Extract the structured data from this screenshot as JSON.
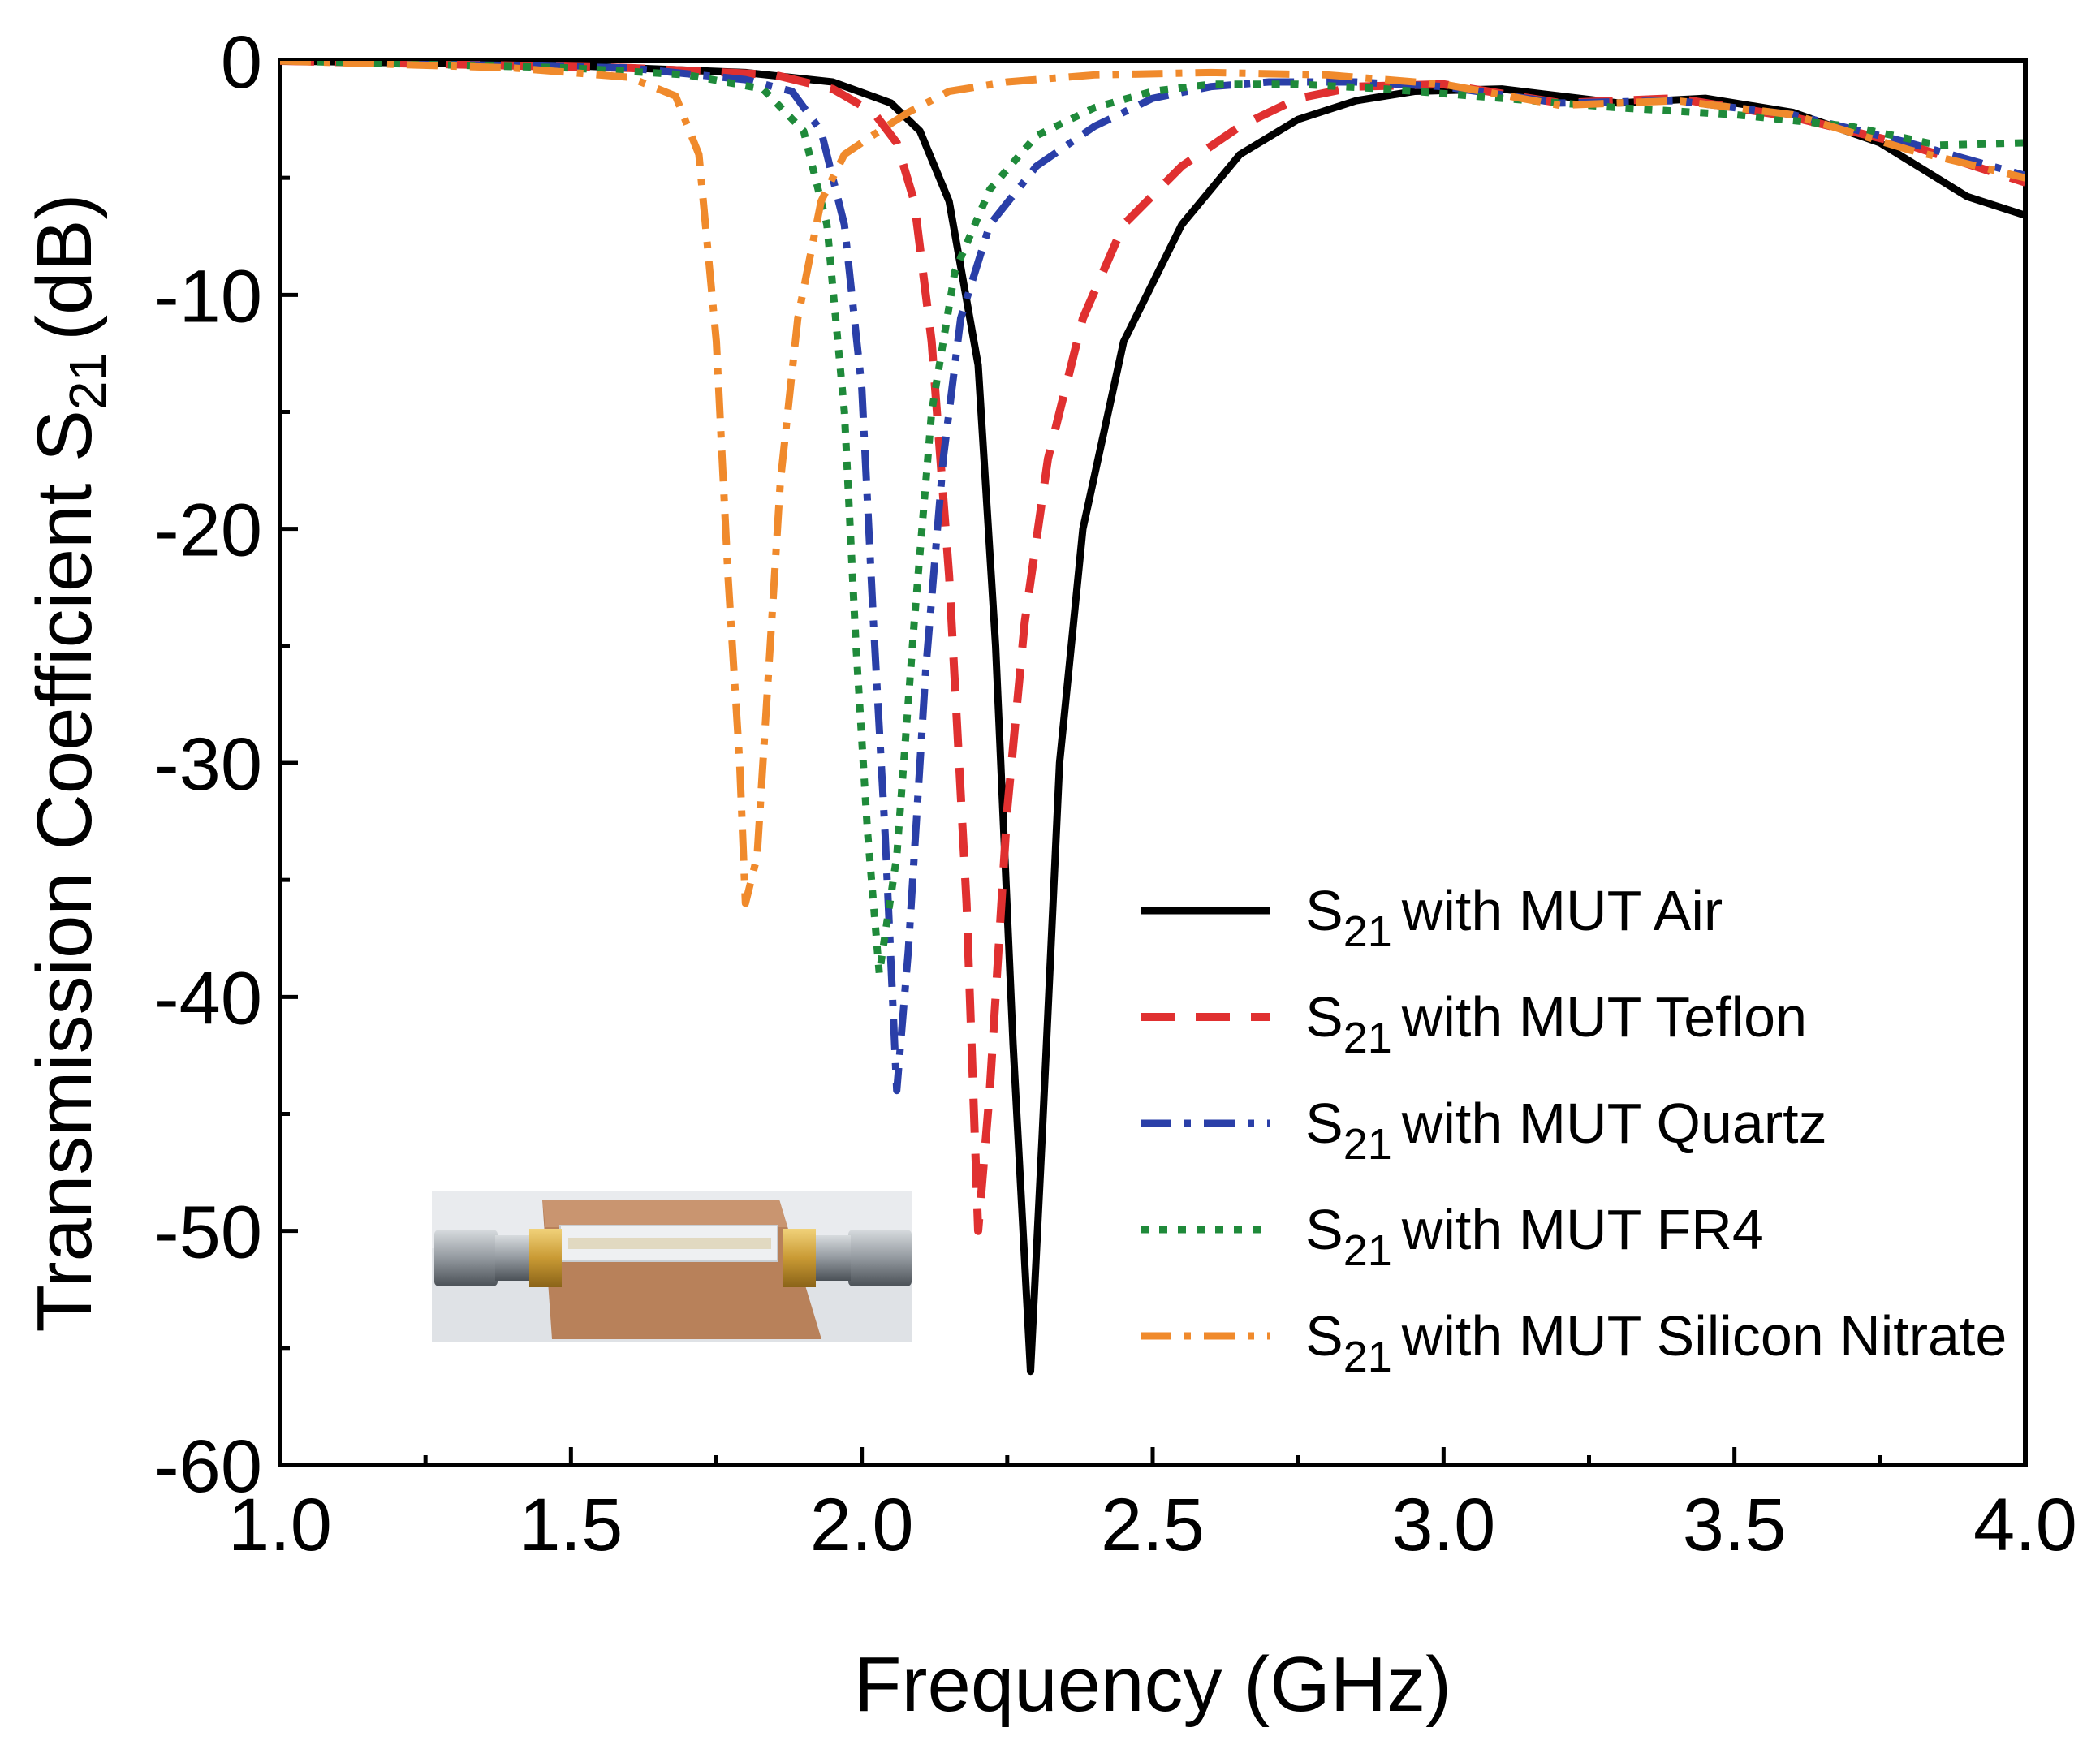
{
  "chart_data": {
    "type": "line",
    "title": "",
    "xlabel": "Frequency (GHz)",
    "ylabel_main": "Transmission Coefficient S",
    "ylabel_sub": "21",
    "ylabel_unit": "(dB)",
    "xlim": [
      1.0,
      4.0
    ],
    "ylim": [
      -60,
      0
    ],
    "xticks": [
      1.0,
      1.5,
      2.0,
      2.5,
      3.0,
      3.5,
      4.0
    ],
    "xtick_labels": [
      "1.0",
      "1.5",
      "2.0",
      "2.5",
      "3.0",
      "3.5",
      "4.0"
    ],
    "yticks": [
      0,
      -10,
      -20,
      -30,
      -40,
      -50,
      -60
    ],
    "ytick_labels": [
      "0",
      "-10",
      "-20",
      "-30",
      "-40",
      "-50",
      "-60"
    ],
    "legend_position": "bottom-right",
    "grid": false,
    "inset": "photo of microstrip sensor with SMA connectors (bottom-left)",
    "series": [
      {
        "name": "with MUT Air",
        "legend_prefix": "S",
        "legend_sub": "21",
        "color": "#000000",
        "style": "solid",
        "points": [
          [
            1.0,
            0
          ],
          [
            1.5,
            -0.2
          ],
          [
            1.8,
            -0.5
          ],
          [
            1.95,
            -0.9
          ],
          [
            2.05,
            -1.8
          ],
          [
            2.1,
            -3
          ],
          [
            2.15,
            -6
          ],
          [
            2.2,
            -13
          ],
          [
            2.23,
            -25
          ],
          [
            2.26,
            -42
          ],
          [
            2.29,
            -56
          ],
          [
            2.31,
            -46
          ],
          [
            2.34,
            -30
          ],
          [
            2.38,
            -20
          ],
          [
            2.45,
            -12
          ],
          [
            2.55,
            -7
          ],
          [
            2.65,
            -4
          ],
          [
            2.75,
            -2.5
          ],
          [
            2.85,
            -1.7
          ],
          [
            2.95,
            -1.3
          ],
          [
            3.1,
            -1.2
          ],
          [
            3.3,
            -1.8
          ],
          [
            3.45,
            -1.6
          ],
          [
            3.6,
            -2.2
          ],
          [
            3.75,
            -3.5
          ],
          [
            3.9,
            -5.8
          ],
          [
            4.0,
            -6.6
          ]
        ]
      },
      {
        "name": "with MUT Teflon",
        "legend_prefix": "S",
        "legend_sub": "21",
        "color": "#e03030",
        "style": "dashed",
        "points": [
          [
            1.0,
            0
          ],
          [
            1.6,
            -0.3
          ],
          [
            1.85,
            -0.6
          ],
          [
            1.95,
            -1.2
          ],
          [
            2.02,
            -2.2
          ],
          [
            2.06,
            -3.5
          ],
          [
            2.09,
            -6
          ],
          [
            2.12,
            -12
          ],
          [
            2.15,
            -22
          ],
          [
            2.18,
            -36
          ],
          [
            2.2,
            -50
          ],
          [
            2.22,
            -44
          ],
          [
            2.25,
            -32
          ],
          [
            2.28,
            -24
          ],
          [
            2.32,
            -17
          ],
          [
            2.38,
            -11
          ],
          [
            2.45,
            -7
          ],
          [
            2.55,
            -4.5
          ],
          [
            2.65,
            -2.8
          ],
          [
            2.75,
            -1.6
          ],
          [
            2.85,
            -1.1
          ],
          [
            3.0,
            -1.0
          ],
          [
            3.2,
            -1.8
          ],
          [
            3.4,
            -1.6
          ],
          [
            3.6,
            -2.4
          ],
          [
            3.8,
            -3.6
          ],
          [
            4.0,
            -5.2
          ]
        ]
      },
      {
        "name": "with MUT Quartz",
        "legend_prefix": "S",
        "legend_sub": "21",
        "color": "#2a3fa8",
        "style": "dashdot",
        "points": [
          [
            1.0,
            0
          ],
          [
            1.6,
            -0.3
          ],
          [
            1.8,
            -0.8
          ],
          [
            1.88,
            -1.3
          ],
          [
            1.93,
            -3
          ],
          [
            1.97,
            -7
          ],
          [
            2.0,
            -14
          ],
          [
            2.02,
            -24
          ],
          [
            2.04,
            -33
          ],
          [
            2.06,
            -44
          ],
          [
            2.08,
            -38
          ],
          [
            2.11,
            -26
          ],
          [
            2.14,
            -17
          ],
          [
            2.17,
            -11
          ],
          [
            2.22,
            -7
          ],
          [
            2.3,
            -4.5
          ],
          [
            2.4,
            -2.8
          ],
          [
            2.5,
            -1.6
          ],
          [
            2.6,
            -1.1
          ],
          [
            2.7,
            -0.9
          ],
          [
            2.85,
            -0.9
          ],
          [
            3.0,
            -1.1
          ],
          [
            3.2,
            -1.8
          ],
          [
            3.4,
            -1.7
          ],
          [
            3.6,
            -2.3
          ],
          [
            3.8,
            -3.5
          ],
          [
            4.0,
            -4.9
          ]
        ]
      },
      {
        "name": "with MUT FR4",
        "legend_prefix": "S",
        "legend_sub": "21",
        "color": "#1f8a3a",
        "style": "dotted",
        "points": [
          [
            1.0,
            0
          ],
          [
            1.5,
            -0.3
          ],
          [
            1.7,
            -0.6
          ],
          [
            1.83,
            -1.2
          ],
          [
            1.9,
            -3
          ],
          [
            1.94,
            -7
          ],
          [
            1.97,
            -15
          ],
          [
            1.99,
            -25
          ],
          [
            2.01,
            -33
          ],
          [
            2.03,
            -39
          ],
          [
            2.06,
            -34
          ],
          [
            2.09,
            -24
          ],
          [
            2.12,
            -15
          ],
          [
            2.16,
            -9
          ],
          [
            2.22,
            -5.5
          ],
          [
            2.3,
            -3.2
          ],
          [
            2.4,
            -2
          ],
          [
            2.5,
            -1.3
          ],
          [
            2.6,
            -1.0
          ],
          [
            2.75,
            -1.0
          ],
          [
            2.9,
            -1.2
          ],
          [
            3.1,
            -1.6
          ],
          [
            3.3,
            -2.0
          ],
          [
            3.5,
            -2.3
          ],
          [
            3.7,
            -2.8
          ],
          [
            3.85,
            -3.6
          ],
          [
            4.0,
            -3.5
          ]
        ]
      },
      {
        "name": "with MUT Silicon Nitrate",
        "legend_prefix": "S",
        "legend_sub": "21",
        "color": "#f08a2c",
        "style": "dashdot",
        "points": [
          [
            1.0,
            0
          ],
          [
            1.4,
            -0.3
          ],
          [
            1.6,
            -0.7
          ],
          [
            1.68,
            -1.5
          ],
          [
            1.72,
            -4
          ],
          [
            1.75,
            -12
          ],
          [
            1.77,
            -22
          ],
          [
            1.79,
            -30
          ],
          [
            1.8,
            -36
          ],
          [
            1.82,
            -34
          ],
          [
            1.84,
            -26
          ],
          [
            1.86,
            -18
          ],
          [
            1.89,
            -11
          ],
          [
            1.93,
            -6
          ],
          [
            1.97,
            -4
          ],
          [
            2.03,
            -3
          ],
          [
            2.08,
            -2.2
          ],
          [
            2.15,
            -1.3
          ],
          [
            2.25,
            -0.9
          ],
          [
            2.4,
            -0.6
          ],
          [
            2.6,
            -0.5
          ],
          [
            2.8,
            -0.6
          ],
          [
            3.0,
            -1.0
          ],
          [
            3.2,
            -1.9
          ],
          [
            3.4,
            -1.7
          ],
          [
            3.6,
            -2.3
          ],
          [
            3.8,
            -3.8
          ],
          [
            4.0,
            -5.0
          ]
        ]
      }
    ]
  }
}
